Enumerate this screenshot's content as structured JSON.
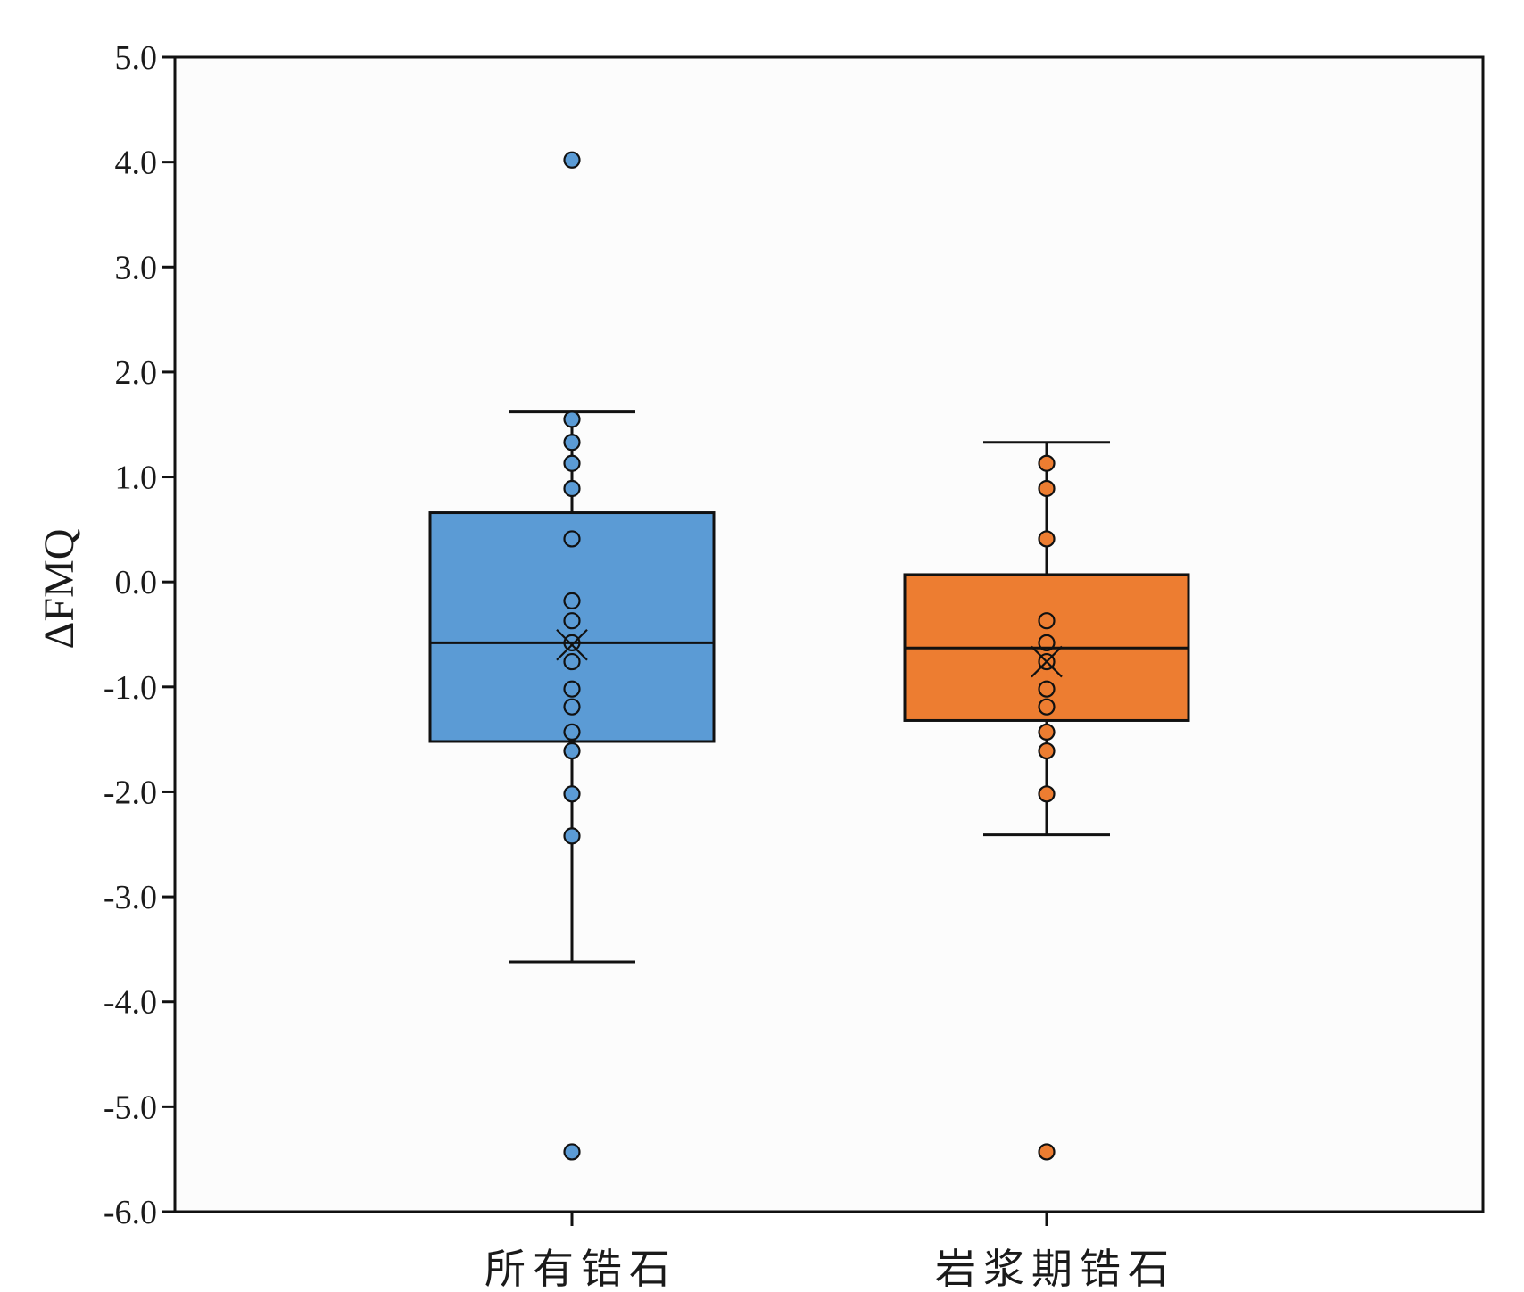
{
  "chart_data": {
    "type": "box",
    "title": "",
    "ylabel": "ΔFMQ",
    "xlabel": "",
    "ylim": [
      -6.0,
      5.0
    ],
    "yticks": [
      "5.0",
      "4.0",
      "3.0",
      "2.0",
      "1.0",
      "0.0",
      "-1.0",
      "-2.0",
      "-3.0",
      "-4.0",
      "-5.0",
      "-6.0"
    ],
    "ytick_values": [
      5,
      4,
      3,
      2,
      1,
      0,
      -1,
      -2,
      -3,
      -4,
      -5,
      -6
    ],
    "grid": false,
    "categories": [
      "所有锆石",
      "岩浆期锆石"
    ],
    "boxes": [
      {
        "category": "所有锆石",
        "color": "#5b9bd5",
        "whisker_high": 1.62,
        "q3": 0.66,
        "median": -0.58,
        "q1": -1.52,
        "whisker_low": -3.62,
        "mean": -0.6,
        "points": [
          4.02,
          1.55,
          1.33,
          1.13,
          0.89,
          0.41,
          -0.18,
          -0.37,
          -0.58,
          -0.76,
          -1.02,
          -1.19,
          -1.43,
          -1.61,
          -2.02,
          -2.42,
          -5.43
        ]
      },
      {
        "category": "岩浆期锆石",
        "color": "#ed7d31",
        "whisker_high": 1.33,
        "q3": 0.07,
        "median": -0.63,
        "q1": -1.32,
        "whisker_low": -2.41,
        "mean": -0.76,
        "points": [
          1.13,
          0.89,
          0.41,
          -0.37,
          -0.58,
          -0.76,
          -1.02,
          -1.19,
          -1.43,
          -1.61,
          -2.02,
          -5.43
        ]
      }
    ]
  }
}
